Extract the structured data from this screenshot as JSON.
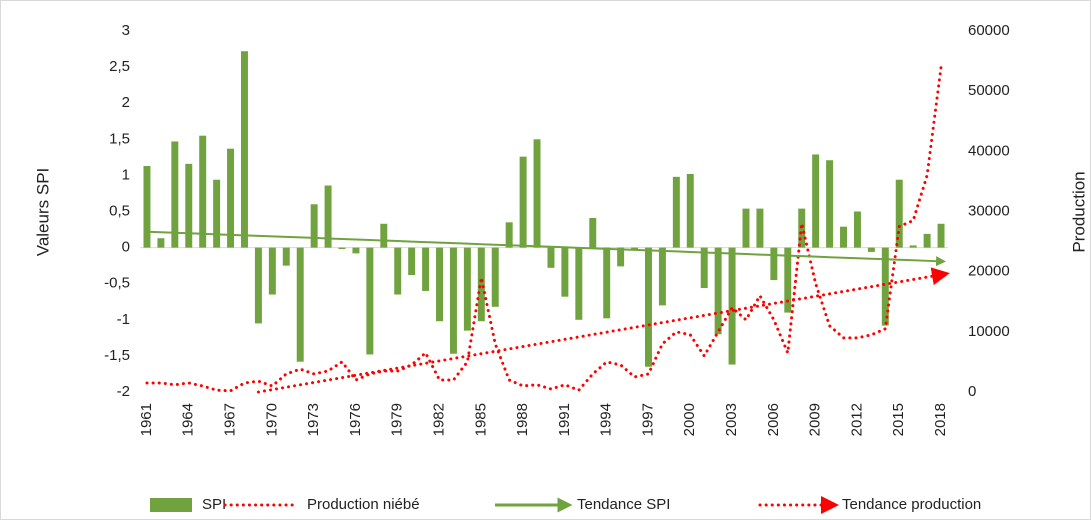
{
  "chart_data": {
    "type": "combo",
    "y_label": "Valeurs SPI",
    "y2_label": "Production",
    "categories": [
      "1961",
      null,
      null,
      "1964",
      null,
      null,
      "1967",
      null,
      null,
      "1970",
      null,
      null,
      "1973",
      null,
      null,
      "1976",
      null,
      null,
      "1979",
      null,
      null,
      "1982",
      null,
      null,
      "1985",
      null,
      null,
      "1988",
      null,
      null,
      "1991",
      null,
      null,
      "1994",
      null,
      null,
      "1997",
      null,
      null,
      "2000",
      null,
      null,
      "2003",
      null,
      null,
      "2006",
      null,
      null,
      "2009",
      null,
      null,
      "2012",
      null,
      null,
      "2015",
      null,
      null,
      "2018"
    ],
    "series": [
      {
        "name": "SPI",
        "kind": "bar",
        "color": "#70a33f",
        "values": [
          1.13,
          0.13,
          1.47,
          1.16,
          1.55,
          0.94,
          1.37,
          2.72,
          -1.05,
          -0.65,
          -0.25,
          -1.58,
          0.6,
          0.86,
          -0.02,
          -0.08,
          -1.48,
          0.33,
          -0.65,
          -0.38,
          -0.6,
          -1.02,
          -1.47,
          -1.15,
          -1.02,
          -0.82,
          0.35,
          1.26,
          1.5,
          -0.28,
          -0.68,
          -1.0,
          0.41,
          -0.98,
          -0.26,
          -0.02,
          -1.65,
          -0.8,
          0.98,
          1.02,
          -0.56,
          -1.2,
          -1.62,
          0.54,
          0.54,
          -0.45,
          -0.9,
          0.54,
          1.29,
          1.21,
          0.29,
          0.5,
          -0.06,
          -1.08,
          0.94,
          0.03,
          0.19,
          0.33
        ]
      },
      {
        "name": "Production niébé",
        "kind": "dotted",
        "axis": "y2",
        "color": "#ff0000",
        "values": [
          1500,
          1500,
          1200,
          1500,
          1000,
          300,
          200,
          1500,
          1800,
          1000,
          3000,
          3800,
          3000,
          3500,
          5000,
          2000,
          3000,
          3500,
          3500,
          4500,
          6500,
          2000,
          2000,
          5000,
          19000,
          8000,
          2000,
          1000,
          1200,
          500,
          1200,
          300,
          3000,
          5000,
          4500,
          2500,
          3000,
          8000,
          10000,
          9500,
          6000,
          10000,
          14000,
          12000,
          16000,
          12000,
          6500,
          28000,
          18000,
          11000,
          9000,
          9000,
          9500,
          10500,
          27500,
          28500,
          36000,
          54000
        ]
      },
      {
        "name": "Tendance SPI",
        "kind": "trend",
        "color": "#70a33f",
        "values": [
          0.22,
          0.213,
          0.206,
          0.198,
          0.191,
          0.184,
          0.177,
          0.17,
          0.162,
          0.155,
          0.148,
          0.141,
          0.134,
          0.126,
          0.119,
          0.112,
          0.105,
          0.098,
          0.091,
          0.083,
          0.076,
          0.069,
          0.062,
          0.055,
          0.047,
          0.04,
          0.033,
          0.026,
          0.019,
          0.011,
          0.004,
          -0.003,
          -0.01,
          -0.017,
          -0.025,
          -0.032,
          -0.039,
          -0.046,
          -0.053,
          -0.061,
          -0.068,
          -0.075,
          -0.082,
          -0.089,
          -0.097,
          -0.104,
          -0.111,
          -0.118,
          -0.125,
          -0.133,
          -0.14,
          -0.147,
          -0.154,
          -0.161,
          -0.169,
          -0.176,
          -0.183,
          -0.19
        ]
      },
      {
        "name": "Tendance production",
        "kind": "trend-dotted",
        "axis": "y2",
        "color": "#ff0000",
        "values": [
          null,
          null,
          null,
          null,
          null,
          null,
          null,
          null,
          0,
          398,
          796,
          1194,
          1592,
          1990,
          2388,
          2786,
          3184,
          3582,
          3980,
          4378,
          4776,
          5173,
          5571,
          5969,
          6367,
          6765,
          7163,
          7561,
          7959,
          8357,
          8755,
          9153,
          9551,
          9949,
          10347,
          10745,
          11143,
          11541,
          11939,
          12337,
          12735,
          13133,
          13531,
          13929,
          14327,
          14724,
          15122,
          15520,
          15918,
          16316,
          16714,
          17112,
          17510,
          17908,
          18306,
          18704,
          19102,
          19500
        ]
      }
    ],
    "ylim": [
      -2,
      3
    ],
    "yticks": [
      -2,
      {
        "value": -1.5,
        "label": "-1,5"
      },
      -1,
      {
        "value": -0.5,
        "label": "-0,5"
      },
      0,
      {
        "value": 0.5,
        "label": "0,5"
      },
      1,
      {
        "value": 1.5,
        "label": "1,5"
      },
      2,
      {
        "value": 2.5,
        "label": "2,5"
      },
      3
    ],
    "y2lim": [
      0,
      60000
    ],
    "y2ticks": [
      0,
      10000,
      20000,
      30000,
      40000,
      50000,
      60000
    ],
    "legend": "bottom"
  }
}
